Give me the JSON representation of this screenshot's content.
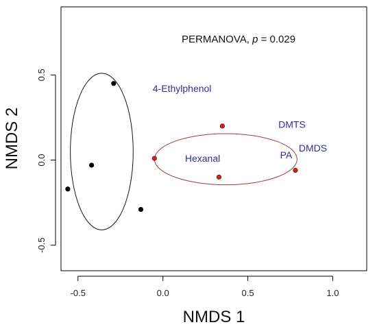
{
  "chart_data": {
    "type": "scatter",
    "xlabel": "NMDS 1",
    "ylabel": "NMDS 2",
    "xlim": [
      -0.6,
      1.2
    ],
    "ylim": [
      -0.65,
      0.9
    ],
    "x_ticks": [
      -0.5,
      0.0,
      0.5,
      1.0
    ],
    "x_tick_labels": [
      "-0.5",
      "0.0",
      "0.5",
      "1.0"
    ],
    "y_ticks": [
      -0.5,
      0.0,
      0.5
    ],
    "y_tick_labels": [
      "-0.5",
      "0.0",
      "0.5"
    ],
    "grid": false,
    "stat_prefix": "PERMANOVA, ",
    "stat_p": "p",
    "stat_rest": " = 0.029",
    "colors": {
      "group_black": "#000000",
      "group_red": "#cc2222",
      "ellipse_red": "#a33a3a",
      "text_blue": "#2e2e9a"
    },
    "series": [
      {
        "color": "#000000",
        "points": [
          {
            "x": -0.29,
            "y": 0.45
          },
          {
            "x": -0.42,
            "y": -0.03
          },
          {
            "x": -0.56,
            "y": -0.17
          },
          {
            "x": -0.13,
            "y": -0.29
          }
        ],
        "ellipse": {
          "cx": -0.36,
          "cy": 0.05,
          "rx": 0.185,
          "ry": 0.46
        }
      },
      {
        "color": "#cc2222",
        "points": [
          {
            "x": 0.35,
            "y": 0.2
          },
          {
            "x": -0.05,
            "y": 0.01
          },
          {
            "x": 0.33,
            "y": -0.1
          },
          {
            "x": 0.78,
            "y": -0.06
          }
        ],
        "ellipse": {
          "cx": 0.37,
          "cy": 0.005,
          "rx": 0.42,
          "ry": 0.15
        }
      }
    ],
    "annotations": [
      {
        "text": "4-Ethylphenol",
        "x": -0.06,
        "y": 0.4
      },
      {
        "text": "DMTS",
        "x": 0.68,
        "y": 0.19
      },
      {
        "text": "DMDS",
        "x": 0.8,
        "y": 0.05
      },
      {
        "text": "PA",
        "x": 0.69,
        "y": 0.01
      },
      {
        "text": "Hexanal",
        "x": 0.13,
        "y": -0.01
      }
    ]
  }
}
